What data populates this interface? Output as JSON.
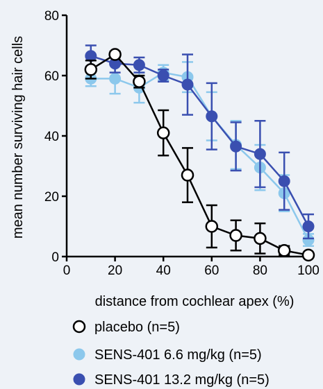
{
  "chart_data": {
    "type": "line",
    "xlabel": "distance from cochlear apex (%)",
    "ylabel": "mean number surviving hair cells",
    "xlim": [
      0,
      100
    ],
    "ylim": [
      0,
      80
    ],
    "xticks": [
      0,
      20,
      40,
      60,
      80,
      100
    ],
    "yticks": [
      0,
      20,
      40,
      60,
      80
    ],
    "x": [
      10,
      20,
      30,
      40,
      50,
      60,
      70,
      80,
      90,
      100
    ],
    "grid": false,
    "legend_position": "bottom",
    "series": [
      {
        "name": "placebo (n=5)",
        "color": "#000000",
        "marker_fill": "#ffffff",
        "values": [
          62,
          67,
          58,
          41,
          27,
          10,
          7,
          6,
          2,
          0.5
        ],
        "error": [
          3,
          1,
          2,
          7.5,
          9,
          7,
          5,
          5,
          1.5,
          0.5
        ]
      },
      {
        "name": "SENS-401 6.6 mg/kg (n=5)",
        "color": "#8cc8ec",
        "marker_fill": "#8cc8ec",
        "values": [
          59,
          59,
          56,
          61,
          59.5,
          46.5,
          37,
          29.5,
          21,
          5.5
        ],
        "error": [
          2.5,
          5,
          5,
          2.5,
          5,
          8,
          8,
          7.5,
          6,
          2
        ]
      },
      {
        "name": "SENS-401 13.2 mg/kg (n=5)",
        "color": "#3a4fb0",
        "marker_fill": "#3a4fb0",
        "values": [
          66.5,
          64,
          63.5,
          60,
          57,
          46.5,
          36.5,
          34,
          25,
          10
        ],
        "error": [
          3.5,
          3,
          2.5,
          2,
          10,
          11,
          8,
          11,
          9.5,
          4
        ]
      }
    ]
  }
}
